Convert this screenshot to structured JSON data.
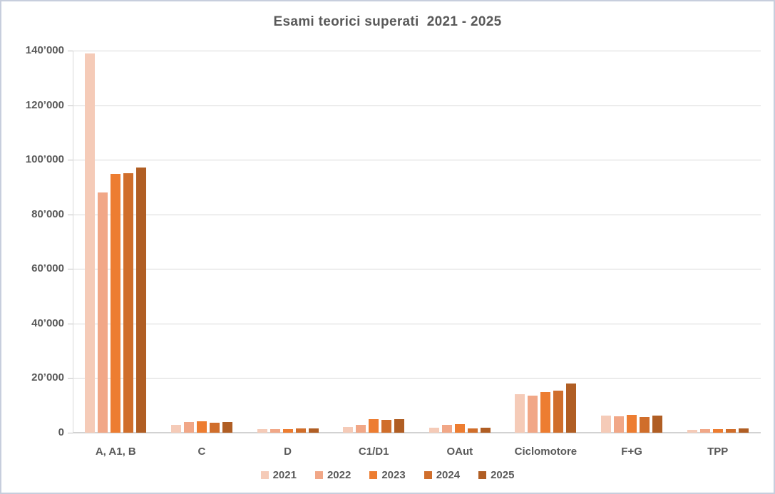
{
  "window": {
    "border_color": "#c7cedd",
    "background": "#ffffff"
  },
  "chart_data": {
    "type": "bar",
    "title": "Esami teorici superati  2021 - 2025",
    "categories": [
      "A, A1, B",
      "C",
      "D",
      "C1/D1",
      "OAut",
      "Ciclomotore",
      "F+G",
      "TPP"
    ],
    "series": [
      {
        "name": "2021",
        "color": "#f5cbb8",
        "values": [
          139000,
          2900,
          1200,
          2000,
          1800,
          14000,
          6300,
          1000
        ]
      },
      {
        "name": "2022",
        "color": "#f1a787",
        "values": [
          88000,
          3900,
          1300,
          3000,
          2800,
          13600,
          6000,
          1300
        ]
      },
      {
        "name": "2023",
        "color": "#ed7d31",
        "values": [
          94800,
          4100,
          1400,
          4900,
          3200,
          14800,
          6500,
          1400
        ]
      },
      {
        "name": "2024",
        "color": "#d06e2b",
        "values": [
          95200,
          3700,
          1500,
          4600,
          1600,
          15300,
          5800,
          1400
        ]
      },
      {
        "name": "2025",
        "color": "#b05e24",
        "values": [
          97200,
          3900,
          1500,
          5100,
          1900,
          18000,
          6200,
          1700
        ]
      }
    ],
    "ylim": [
      0,
      140000
    ],
    "ytick_step": 20000,
    "ytick_labels": [
      "0",
      "20’000",
      "40’000",
      "60’000",
      "80’000",
      "100’000",
      "120’000",
      "140’000"
    ],
    "grid": "horizontal",
    "legend_position": "bottom",
    "legend_labels": [
      "2021",
      "2022",
      "2023",
      "2024",
      "2025"
    ],
    "text_color": "#595959",
    "gridline_color": "#d9d9d9",
    "axis_line_color": "#d2d2d2"
  }
}
